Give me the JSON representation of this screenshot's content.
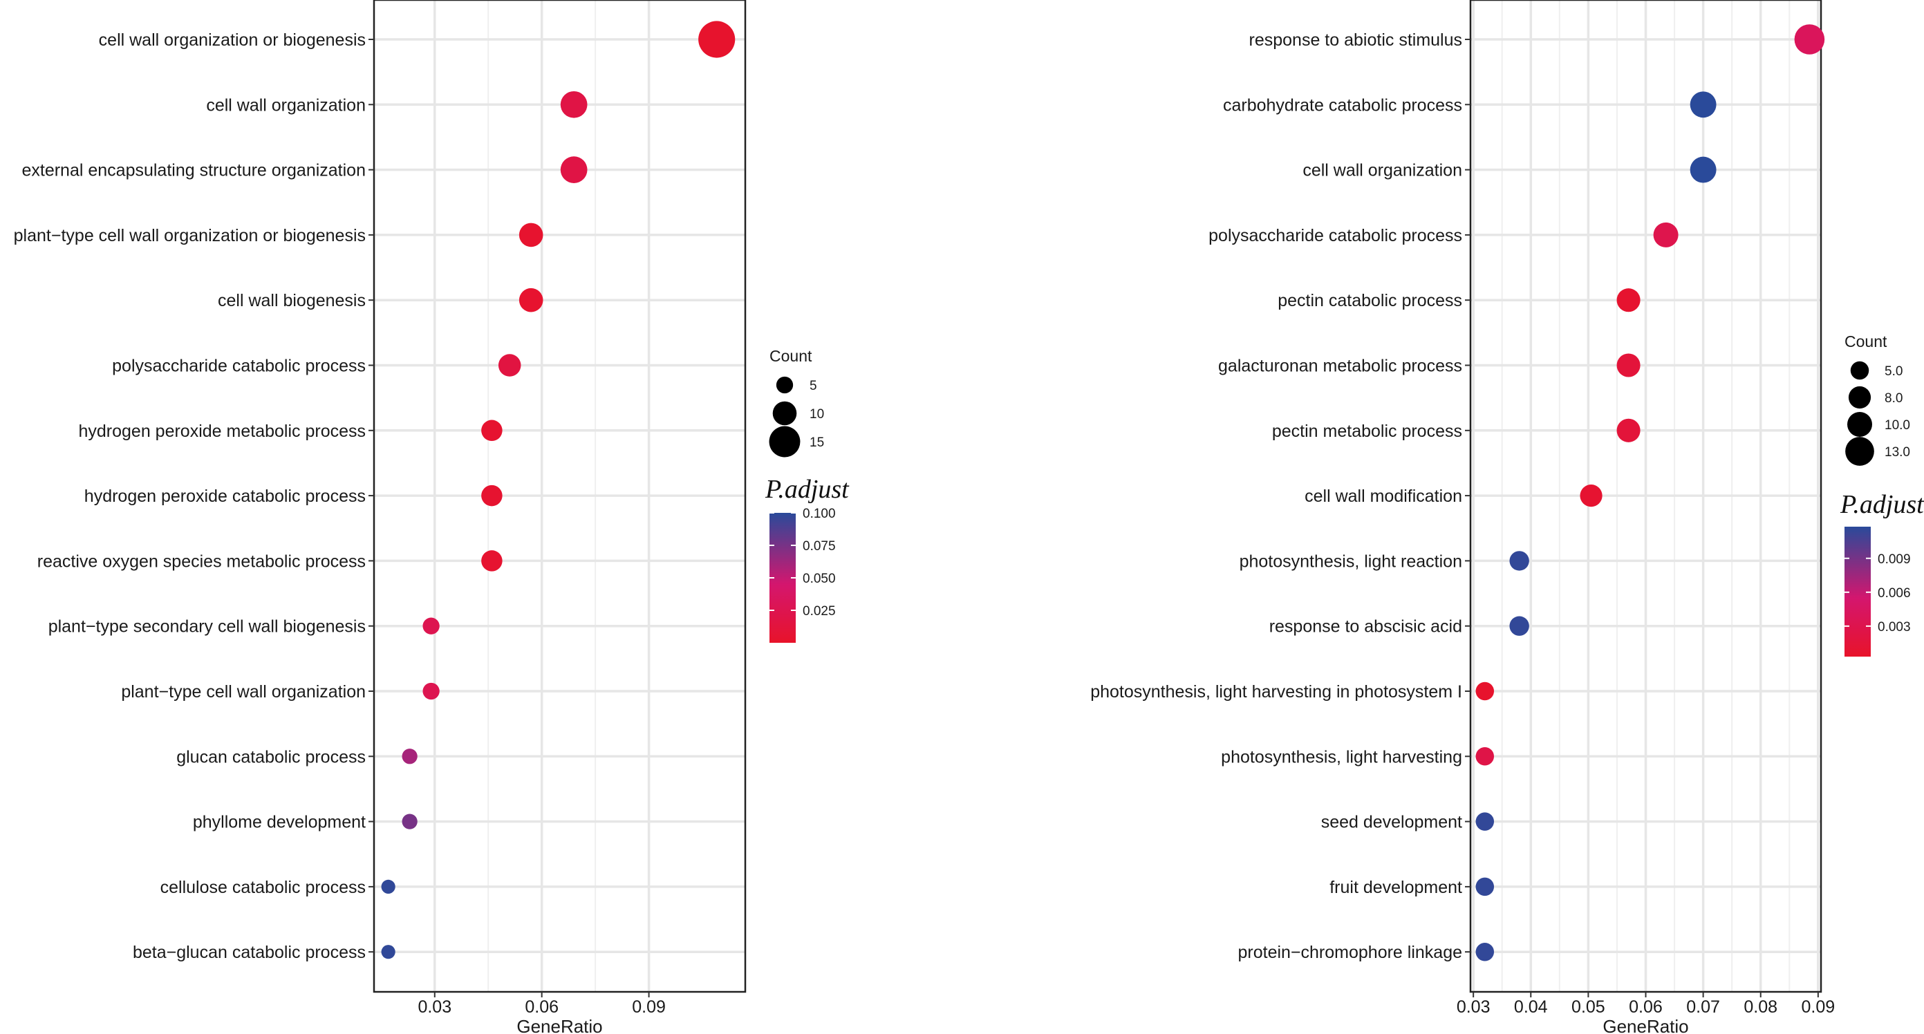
{
  "chart_data": [
    {
      "type": "scatter",
      "subtype": "dot-plot",
      "xlabel": "GeneRatio",
      "xlim": [
        0.013,
        0.117
      ],
      "xticks": [
        0.03,
        0.06,
        0.09
      ],
      "xtick_labels": [
        "0.03",
        "0.06",
        "0.09"
      ],
      "grid": true,
      "categories": [
        "cell wall organization or biogenesis",
        "cell wall organization",
        "external encapsulating structure organization",
        "plant−type cell wall organization or biogenesis",
        "cell wall biogenesis",
        "polysaccharide catabolic process",
        "hydrogen peroxide metabolic process",
        "hydrogen peroxide catabolic process",
        "reactive oxygen species metabolic process",
        "plant−type secondary cell wall biogenesis",
        "plant−type cell wall organization",
        "glucan catabolic process",
        "phyllome development",
        "cellulose catabolic process",
        "beta−glucan catabolic process"
      ],
      "gene_ratio": [
        0.109,
        0.069,
        0.069,
        0.057,
        0.057,
        0.051,
        0.046,
        0.046,
        0.046,
        0.029,
        0.029,
        0.023,
        0.023,
        0.017,
        0.017
      ],
      "count": [
        19,
        12,
        12,
        10,
        10,
        9,
        8,
        8,
        8,
        5,
        5,
        4,
        4,
        3,
        3
      ],
      "p_adjust": [
        0.002,
        0.018,
        0.018,
        0.003,
        0.003,
        0.015,
        0.004,
        0.004,
        0.004,
        0.025,
        0.025,
        0.06,
        0.075,
        0.098,
        0.098
      ],
      "size_legend": {
        "title": "Count",
        "values": [
          5,
          10,
          15
        ],
        "labels": [
          "5",
          "10",
          "15"
        ]
      },
      "color_legend": {
        "title": "P.adjust",
        "min": 0.0,
        "max": 0.1,
        "ticks": [
          0.1,
          0.075,
          0.05,
          0.025
        ],
        "tick_labels": [
          "0.100",
          "0.075",
          "0.050",
          "0.025"
        ],
        "low_color": "#e8132a",
        "mid_color": "#d4166e",
        "high_color": "#2a4a9a"
      }
    },
    {
      "type": "scatter",
      "subtype": "dot-plot",
      "xlabel": "GeneRatio",
      "xlim": [
        0.0295,
        0.0905
      ],
      "xticks": [
        0.03,
        0.04,
        0.05,
        0.06,
        0.07,
        0.08,
        0.09
      ],
      "xtick_labels": [
        "0.03",
        "0.04",
        "0.05",
        "0.06",
        "0.07",
        "0.08",
        "0.09"
      ],
      "grid": true,
      "categories": [
        "response to abiotic stimulus",
        "carbohydrate catabolic process",
        "cell wall organization",
        "polysaccharide catabolic process",
        "pectin catabolic process",
        "galacturonan metabolic process",
        "pectin metabolic process",
        "cell wall modification",
        "photosynthesis, light reaction",
        "response to abscisic acid",
        "photosynthesis, light harvesting in photosystem I",
        "photosynthesis, light harvesting",
        "seed development",
        "fruit development",
        "protein−chromophore linkage"
      ],
      "gene_ratio": [
        0.0885,
        0.07,
        0.07,
        0.0635,
        0.057,
        0.057,
        0.057,
        0.0505,
        0.038,
        0.038,
        0.032,
        0.032,
        0.032,
        0.032,
        0.032
      ],
      "count": [
        14,
        11,
        11,
        10,
        9,
        9,
        9,
        8,
        6,
        6,
        5,
        5,
        5,
        5,
        5
      ],
      "p_adjust": [
        0.004,
        0.012,
        0.012,
        0.003,
        0.0007,
        0.0015,
        0.0015,
        0.0008,
        0.0115,
        0.0115,
        0.0005,
        0.0025,
        0.0115,
        0.0115,
        0.0115
      ],
      "size_legend": {
        "title": "Count",
        "values": [
          5,
          8,
          10,
          13
        ],
        "labels": [
          "5.0",
          "8.0",
          "10.0",
          "13.0"
        ]
      },
      "color_legend": {
        "title": "P.adjust",
        "min": 0.0003,
        "max": 0.0118,
        "ticks": [
          0.009,
          0.006,
          0.003
        ],
        "tick_labels": [
          "0.009",
          "0.006",
          "0.003"
        ],
        "low_color": "#e8132a",
        "mid_color": "#d4166e",
        "high_color": "#2a4a9a"
      }
    }
  ]
}
